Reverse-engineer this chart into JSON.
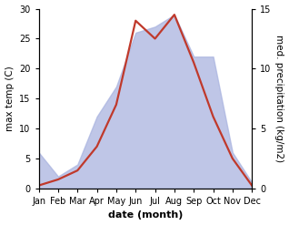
{
  "months": [
    "Jan",
    "Feb",
    "Mar",
    "Apr",
    "May",
    "Jun",
    "Jul",
    "Aug",
    "Sep",
    "Oct",
    "Nov",
    "Dec"
  ],
  "month_positions": [
    1,
    2,
    3,
    4,
    5,
    6,
    7,
    8,
    9,
    10,
    11,
    12
  ],
  "temperature": [
    0.5,
    1.5,
    3.0,
    7.0,
    14.0,
    28.0,
    25.0,
    29.0,
    21.0,
    12.0,
    5.0,
    0.5
  ],
  "precipitation": [
    3.0,
    1.0,
    2.0,
    6.0,
    8.5,
    13.0,
    13.5,
    14.5,
    11.0,
    11.0,
    3.0,
    0.5
  ],
  "temp_color": "#c0392b",
  "precip_fill_color": "#aab4e0",
  "precip_fill_alpha": 0.75,
  "temp_ylim": [
    0,
    30
  ],
  "precip_ylim": [
    0,
    15
  ],
  "precip_scale": 2.0,
  "xlabel": "date (month)",
  "ylabel_left": "max temp (C)",
  "ylabel_right": "med. precipitation (kg/m2)",
  "background_color": "#ffffff",
  "temp_linewidth": 1.6,
  "xlabel_fontsize": 8,
  "ylabel_fontsize": 7.5,
  "tick_fontsize": 7,
  "yticks_left": [
    0,
    5,
    10,
    15,
    20,
    25,
    30
  ],
  "yticks_right": [
    0,
    5,
    10,
    15
  ]
}
